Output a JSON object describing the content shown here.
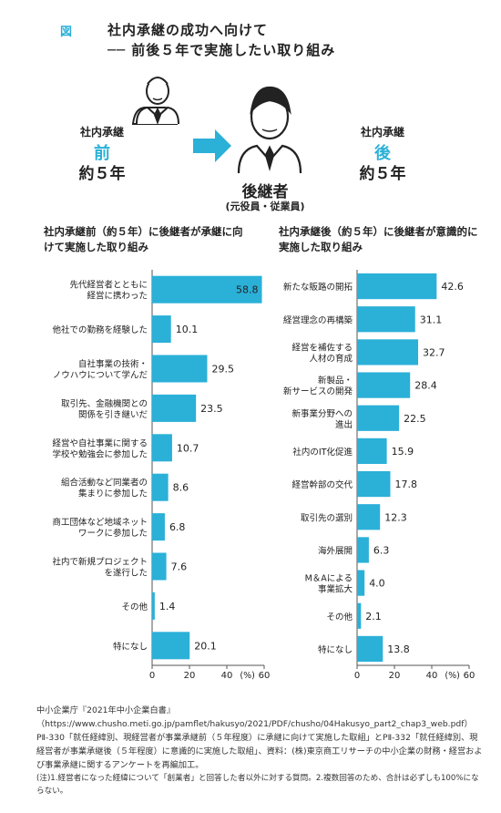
{
  "figure_label": "図",
  "title_line1": "社内承継の成功へ向けて",
  "title_line2": "── 前後５年で実施したい取り組み",
  "pre": {
    "label": "社内承継",
    "big": "前",
    "years": "約５年"
  },
  "post": {
    "label": "社内承継",
    "big": "後",
    "years": "約５年"
  },
  "successor": {
    "name": "後継者",
    "sub": "(元役員・従業員)"
  },
  "left_heading": "社内承継前（約５年）に後継者が承継に向けて実施した取り組み",
  "right_heading": "社内承継後（約５年）に後継者が意識的に実施した取り組み",
  "colors": {
    "accent": "#2bb0d8",
    "axis": "#555555"
  },
  "chart_data": [
    {
      "type": "bar",
      "orientation": "horizontal",
      "categories": [
        "先代経営者とともに\n経営に携わった",
        "他社での勤務を経験した",
        "自社事業の技術・\nノウハウについて学んだ",
        "取引先、金融機関との\n関係を引き継いだ",
        "経営や自社事業に関する\n学校や勉強会に参加した",
        "組合活動など同業者の\n集まりに参加した",
        "商工団体など地域ネット\nワークに参加した",
        "社内で新規プロジェクト\nを遂行した",
        "その他",
        "特になし"
      ],
      "values": [
        58.8,
        10.1,
        29.5,
        23.5,
        10.7,
        8.6,
        6.8,
        7.6,
        1.4,
        20.1
      ],
      "value_labels": [
        "58.8",
        "10.1",
        "29.5",
        "23.5",
        "10.7",
        "8.6",
        "6.8",
        "7.6",
        "1.4",
        "20.1"
      ],
      "xlim": [
        0,
        60
      ],
      "ticks": [
        "0",
        "20",
        "40",
        "60"
      ],
      "unit": "(%)"
    },
    {
      "type": "bar",
      "orientation": "horizontal",
      "categories": [
        "新たな販路の開拓",
        "経営理念の再構築",
        "経営を補佐する\n人材の育成",
        "新製品・\n新サービスの開発",
        "新事業分野への\n進出",
        "社内のIT化促進",
        "経営幹部の交代",
        "取引先の選別",
        "海外展開",
        "M＆Aによる\n事業拡大",
        "その他",
        "特になし"
      ],
      "values": [
        42.6,
        31.1,
        32.7,
        28.4,
        22.5,
        15.9,
        17.8,
        12.3,
        6.3,
        4.0,
        2.1,
        13.8
      ],
      "value_labels": [
        "42.6",
        "31.1",
        "32.7",
        "28.4",
        "22.5",
        "15.9",
        "17.8",
        "12.3",
        "6.3",
        "4.0",
        "2.1",
        "13.8"
      ],
      "xlim": [
        0,
        60
      ],
      "ticks": [
        "0",
        "20",
        "40",
        "60"
      ],
      "unit": "(%)"
    }
  ],
  "source_text": "中小企業庁『2021年中小企業白書』（https://www.chusho.meti.go.jp/pamflet/hakusyo/2021/PDF/chusho/04Hakusyo_part2_chap3_web.pdf）PⅡ-330「就任経緯別、現経営者が事業承継前（５年程度）に承継に向けて実施した取組」とPⅡ-332「就任経緯別、現経営者が事業承継後（５年程度）に意識的に実施した取組」、資料：(株)東京商工リサーチの中小企業の財務・経営および事業承継に関するアンケートを再編加工。",
  "footnote_text": "(注)1.経営者になった経緯について「創業者」と回答した者以外に対する質問。2.複数回答のため、合計は必ずしも100%にならない。"
}
